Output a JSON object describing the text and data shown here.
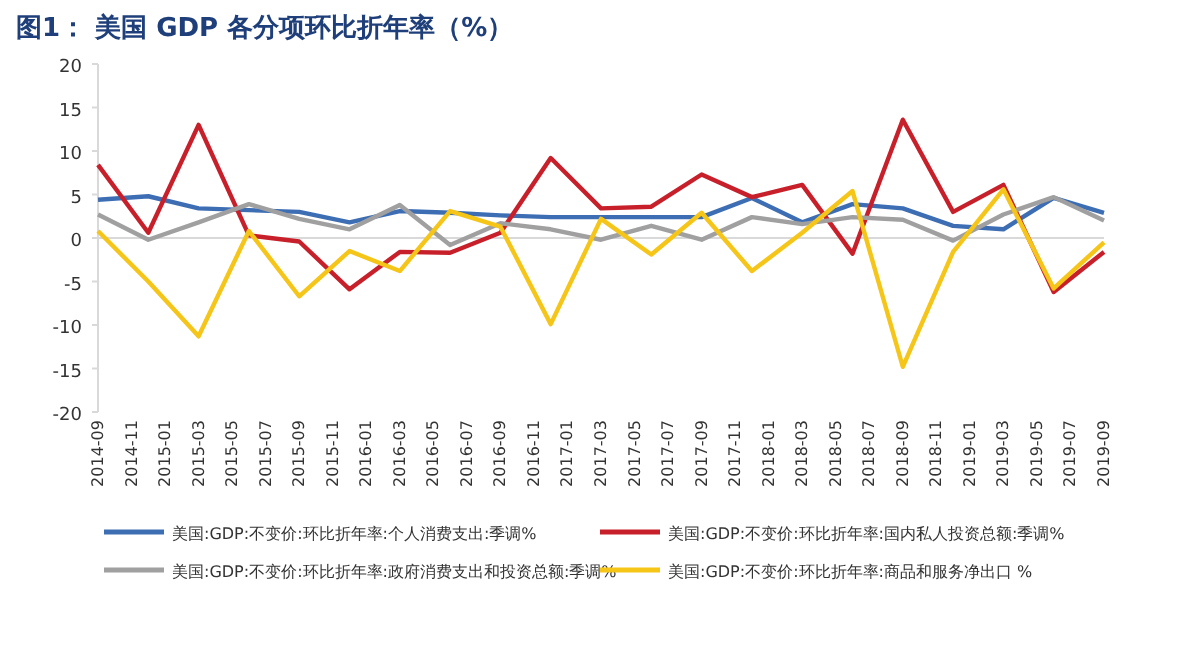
{
  "chart_data": {
    "type": "line",
    "title": "图1：  美国 GDP 各分项环比折年率（%）",
    "x": [
      "2014-09",
      "2014-12",
      "2015-03",
      "2015-06",
      "2015-09",
      "2015-12",
      "2016-03",
      "2016-06",
      "2016-09",
      "2016-12",
      "2017-03",
      "2017-06",
      "2017-09",
      "2017-12",
      "2018-03",
      "2018-06",
      "2018-09",
      "2018-12",
      "2019-03",
      "2019-06",
      "2019-09"
    ],
    "xlim": [
      "2014-09",
      "2019-09"
    ],
    "xticks": [
      "2014-09",
      "2014-11",
      "2015-01",
      "2015-03",
      "2015-05",
      "2015-07",
      "2015-09",
      "2015-11",
      "2016-01",
      "2016-03",
      "2016-05",
      "2016-07",
      "2016-09",
      "2016-11",
      "2017-01",
      "2017-03",
      "2017-05",
      "2017-07",
      "2017-09",
      "2017-11",
      "2018-01",
      "2018-03",
      "2018-05",
      "2018-07",
      "2018-09",
      "2018-11",
      "2019-01",
      "2019-03",
      "2019-05",
      "2019-07",
      "2019-09"
    ],
    "ylim": [
      -20,
      20
    ],
    "yticks": [
      -20,
      -15,
      -10,
      -5,
      0,
      5,
      10,
      15,
      20
    ],
    "legend": "bottom",
    "series": [
      {
        "name": "美国:GDP:不变价:环比折年率:个人消费支出:季调%",
        "color": "#3d6eb4",
        "values": [
          4.4,
          4.8,
          3.4,
          3.2,
          3.0,
          1.8,
          3.1,
          2.9,
          2.6,
          2.4,
          2.4,
          2.4,
          2.4,
          4.6,
          1.8,
          3.9,
          3.4,
          1.4,
          1.0,
          4.6,
          2.9
        ]
      },
      {
        "name": "美国:GDP:不变价:环比折年率:国内私人投资总额:季调%",
        "color": "#c8202a",
        "values": [
          8.4,
          0.6,
          13.0,
          0.3,
          -0.4,
          -5.9,
          -1.6,
          -1.7,
          0.6,
          9.2,
          3.4,
          3.6,
          7.3,
          4.7,
          6.1,
          -1.8,
          13.6,
          3.0,
          6.1,
          -6.2,
          -1.6
        ]
      },
      {
        "name": "美国:GDP:不变价:环比折年率:政府消费支出和投资总额:季调%",
        "color": "#a0a0a0",
        "values": [
          2.7,
          -0.2,
          1.8,
          3.9,
          2.2,
          1.0,
          3.8,
          -0.8,
          1.7,
          1.0,
          -0.2,
          1.4,
          -0.2,
          2.4,
          1.6,
          2.4,
          2.1,
          -0.3,
          2.7,
          4.7,
          2.0
        ]
      },
      {
        "name": "美国:GDP:不变价:环比折年率:商品和服务净出口 %",
        "color": "#f5c518",
        "values": [
          0.8,
          -5.0,
          -11.3,
          0.8,
          -6.7,
          -1.5,
          -3.8,
          3.1,
          1.3,
          -9.9,
          2.2,
          -1.9,
          2.9,
          -3.8,
          0.6,
          5.4,
          -14.8,
          -1.6,
          5.6,
          -5.8,
          -0.5
        ]
      }
    ]
  }
}
